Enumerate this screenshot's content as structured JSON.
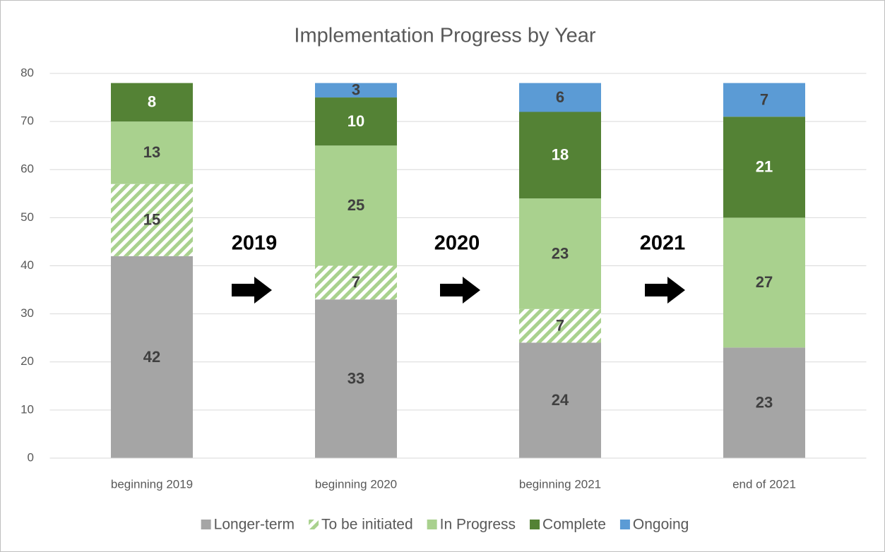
{
  "chart_data": {
    "type": "stacked_bar",
    "title": "Implementation Progress by Year",
    "categories": [
      "beginning 2019",
      "beginning 2020",
      "beginning 2021",
      "end of 2021"
    ],
    "series": [
      {
        "name": "Longer-term",
        "color": "#a5a5a5",
        "values": [
          42,
          33,
          24,
          23
        ]
      },
      {
        "name": "To be initiated",
        "color": "#a9d18e",
        "pattern": "hatch",
        "values": [
          15,
          7,
          7,
          null
        ]
      },
      {
        "name": "In Progress",
        "color": "#a9d18e",
        "values": [
          13,
          25,
          23,
          27
        ]
      },
      {
        "name": "Complete",
        "color": "#548235",
        "values": [
          8,
          10,
          18,
          21
        ]
      },
      {
        "name": "Ongoing",
        "color": "#5b9bd5",
        "values": [
          null,
          3,
          6,
          7
        ]
      }
    ],
    "annotations": [
      "2019",
      "2020",
      "2021"
    ],
    "ylim": [
      0,
      80
    ],
    "yticks": [
      0,
      10,
      20,
      30,
      40,
      50,
      60,
      70,
      80
    ],
    "grid": true,
    "legend": "bottom"
  }
}
